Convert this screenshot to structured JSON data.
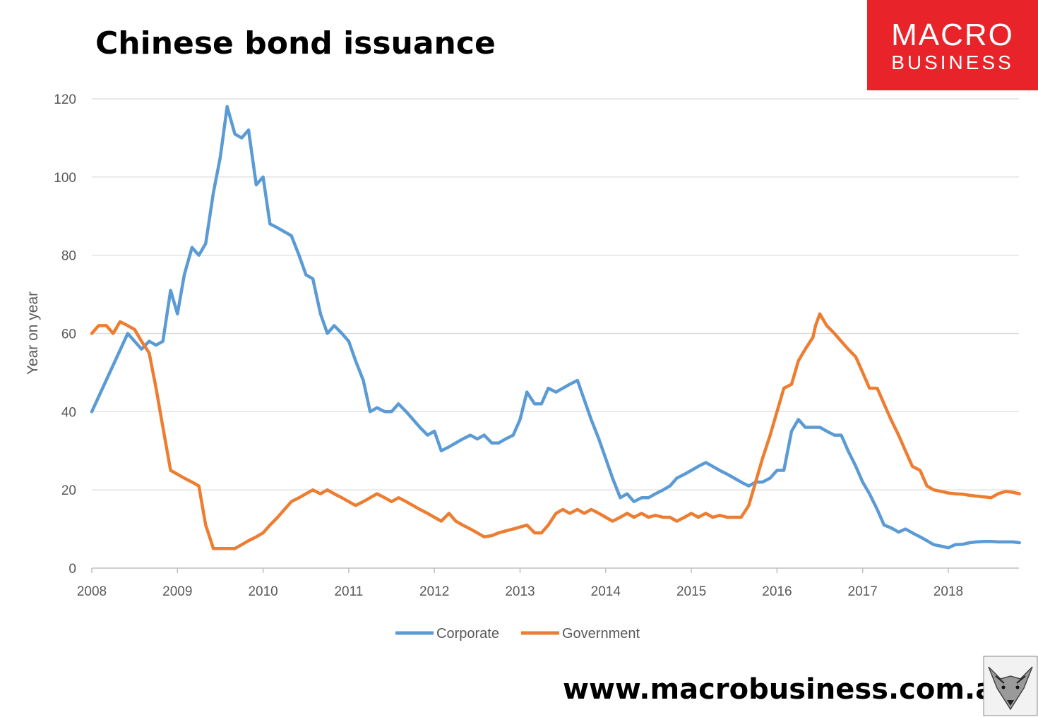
{
  "page": {
    "title": "Chinese bond issuance",
    "url_text": "www.macrobusiness.com.au",
    "logo": {
      "line1": "MACRO",
      "line2": "BUSINESS",
      "bg_color": "#e8242a"
    }
  },
  "chart_data": {
    "type": "line",
    "title": "Chinese bond issuance",
    "ylabel": "Year on year",
    "xlabel": "",
    "ylim": [
      0,
      120
    ],
    "yticks": [
      0,
      20,
      40,
      60,
      80,
      100,
      120
    ],
    "xlim": [
      2008,
      2018.85
    ],
    "xticks": [
      2008,
      2009,
      2010,
      2011,
      2012,
      2013,
      2014,
      2015,
      2016,
      2017,
      2018
    ],
    "grid": true,
    "legend": "bottom-center",
    "series": [
      {
        "name": "Corporate",
        "color": "#5b9bd5",
        "points": [
          [
            2008.0,
            40
          ],
          [
            2008.42,
            60
          ],
          [
            2008.58,
            56
          ],
          [
            2008.67,
            58
          ],
          [
            2008.75,
            57
          ],
          [
            2008.83,
            58
          ],
          [
            2008.92,
            71
          ],
          [
            2009.0,
            65
          ],
          [
            2009.08,
            75
          ],
          [
            2009.17,
            82
          ],
          [
            2009.25,
            80
          ],
          [
            2009.33,
            83
          ],
          [
            2009.42,
            96
          ],
          [
            2009.5,
            105
          ],
          [
            2009.58,
            118
          ],
          [
            2009.67,
            111
          ],
          [
            2009.75,
            110
          ],
          [
            2009.83,
            112
          ],
          [
            2009.92,
            98
          ],
          [
            2010.0,
            100
          ],
          [
            2010.08,
            88
          ],
          [
            2010.17,
            87
          ],
          [
            2010.25,
            86
          ],
          [
            2010.33,
            85
          ],
          [
            2010.42,
            80
          ],
          [
            2010.5,
            75
          ],
          [
            2010.58,
            74
          ],
          [
            2010.67,
            65
          ],
          [
            2010.75,
            60
          ],
          [
            2010.83,
            62
          ],
          [
            2010.92,
            60
          ],
          [
            2011.0,
            58
          ],
          [
            2011.08,
            53
          ],
          [
            2011.17,
            48
          ],
          [
            2011.25,
            40
          ],
          [
            2011.33,
            41
          ],
          [
            2011.42,
            40
          ],
          [
            2011.5,
            40
          ],
          [
            2011.58,
            42
          ],
          [
            2011.67,
            40
          ],
          [
            2011.75,
            38
          ],
          [
            2011.83,
            36
          ],
          [
            2011.92,
            34
          ],
          [
            2012.0,
            35
          ],
          [
            2012.08,
            30
          ],
          [
            2012.17,
            31
          ],
          [
            2012.25,
            32
          ],
          [
            2012.33,
            33
          ],
          [
            2012.42,
            34
          ],
          [
            2012.5,
            33
          ],
          [
            2012.58,
            34
          ],
          [
            2012.67,
            32
          ],
          [
            2012.75,
            32
          ],
          [
            2012.83,
            33
          ],
          [
            2012.92,
            34
          ],
          [
            2013.0,
            38
          ],
          [
            2013.08,
            45
          ],
          [
            2013.17,
            42
          ],
          [
            2013.25,
            42
          ],
          [
            2013.33,
            46
          ],
          [
            2013.42,
            45
          ],
          [
            2013.5,
            46
          ],
          [
            2013.58,
            47
          ],
          [
            2013.67,
            48
          ],
          [
            2013.75,
            43
          ],
          [
            2013.83,
            38
          ],
          [
            2013.92,
            33
          ],
          [
            2014.0,
            28
          ],
          [
            2014.08,
            23
          ],
          [
            2014.17,
            18
          ],
          [
            2014.25,
            19
          ],
          [
            2014.33,
            17
          ],
          [
            2014.42,
            18
          ],
          [
            2014.5,
            18
          ],
          [
            2014.58,
            19
          ],
          [
            2014.67,
            20
          ],
          [
            2014.75,
            21
          ],
          [
            2014.83,
            23
          ],
          [
            2014.92,
            24
          ],
          [
            2015.0,
            25
          ],
          [
            2015.08,
            26
          ],
          [
            2015.17,
            27
          ],
          [
            2015.25,
            26
          ],
          [
            2015.33,
            25
          ],
          [
            2015.42,
            24
          ],
          [
            2015.5,
            23
          ],
          [
            2015.58,
            22
          ],
          [
            2015.67,
            21
          ],
          [
            2015.75,
            22
          ],
          [
            2015.83,
            22
          ],
          [
            2015.92,
            23
          ],
          [
            2016.0,
            25
          ],
          [
            2016.08,
            25
          ],
          [
            2016.17,
            35
          ],
          [
            2016.25,
            38
          ],
          [
            2016.33,
            36
          ],
          [
            2016.42,
            36
          ],
          [
            2016.5,
            36
          ],
          [
            2016.58,
            35
          ],
          [
            2016.67,
            34
          ],
          [
            2016.75,
            34
          ],
          [
            2016.83,
            30
          ],
          [
            2016.92,
            26
          ],
          [
            2017.0,
            22
          ],
          [
            2017.08,
            19
          ],
          [
            2017.17,
            15
          ],
          [
            2017.25,
            11
          ],
          [
            2017.33,
            10.3
          ],
          [
            2017.42,
            9.2
          ],
          [
            2017.5,
            10
          ],
          [
            2017.58,
            9
          ],
          [
            2017.67,
            8
          ],
          [
            2017.75,
            7
          ],
          [
            2017.83,
            6
          ],
          [
            2017.92,
            5.6
          ],
          [
            2018.0,
            5.2
          ],
          [
            2018.08,
            6
          ],
          [
            2018.17,
            6.1
          ],
          [
            2018.25,
            6.5
          ],
          [
            2018.33,
            6.7
          ],
          [
            2018.42,
            6.8
          ],
          [
            2018.5,
            6.8
          ],
          [
            2018.58,
            6.7
          ],
          [
            2018.67,
            6.7
          ],
          [
            2018.75,
            6.7
          ],
          [
            2018.83,
            6.5
          ]
        ]
      },
      {
        "name": "Government",
        "color": "#ed7d31",
        "points": [
          [
            2008.0,
            60
          ],
          [
            2008.08,
            62
          ],
          [
            2008.17,
            62
          ],
          [
            2008.25,
            60
          ],
          [
            2008.33,
            63
          ],
          [
            2008.42,
            62
          ],
          [
            2008.5,
            61
          ],
          [
            2008.58,
            58
          ],
          [
            2008.67,
            55
          ],
          [
            2008.75,
            46
          ],
          [
            2008.83,
            36
          ],
          [
            2008.92,
            25
          ],
          [
            2009.0,
            24
          ],
          [
            2009.08,
            23
          ],
          [
            2009.17,
            22
          ],
          [
            2009.25,
            21
          ],
          [
            2009.33,
            11
          ],
          [
            2009.42,
            5
          ],
          [
            2009.5,
            5
          ],
          [
            2009.58,
            5
          ],
          [
            2009.67,
            5
          ],
          [
            2009.75,
            6
          ],
          [
            2009.83,
            7
          ],
          [
            2009.92,
            8
          ],
          [
            2010.0,
            9
          ],
          [
            2010.08,
            11
          ],
          [
            2010.17,
            13
          ],
          [
            2010.25,
            15
          ],
          [
            2010.33,
            17
          ],
          [
            2010.42,
            18
          ],
          [
            2010.5,
            19
          ],
          [
            2010.58,
            20
          ],
          [
            2010.67,
            19
          ],
          [
            2010.75,
            20
          ],
          [
            2010.83,
            19
          ],
          [
            2010.92,
            18
          ],
          [
            2011.0,
            17
          ],
          [
            2011.08,
            16
          ],
          [
            2011.17,
            17
          ],
          [
            2011.25,
            18
          ],
          [
            2011.33,
            19
          ],
          [
            2011.42,
            18
          ],
          [
            2011.5,
            17
          ],
          [
            2011.58,
            18
          ],
          [
            2011.67,
            17
          ],
          [
            2011.75,
            16
          ],
          [
            2011.83,
            15
          ],
          [
            2011.92,
            14
          ],
          [
            2012.0,
            13
          ],
          [
            2012.08,
            12
          ],
          [
            2012.17,
            14
          ],
          [
            2012.25,
            12
          ],
          [
            2012.33,
            11
          ],
          [
            2012.42,
            10
          ],
          [
            2012.5,
            9
          ],
          [
            2012.58,
            8
          ],
          [
            2012.67,
            8.3
          ],
          [
            2012.75,
            9
          ],
          [
            2012.83,
            9.5
          ],
          [
            2012.92,
            10
          ],
          [
            2013.0,
            10.5
          ],
          [
            2013.08,
            11
          ],
          [
            2013.17,
            9
          ],
          [
            2013.25,
            9
          ],
          [
            2013.33,
            11
          ],
          [
            2013.42,
            14
          ],
          [
            2013.5,
            15
          ],
          [
            2013.58,
            14
          ],
          [
            2013.67,
            15
          ],
          [
            2013.75,
            14
          ],
          [
            2013.83,
            15
          ],
          [
            2013.92,
            14
          ],
          [
            2014.0,
            13
          ],
          [
            2014.08,
            12
          ],
          [
            2014.17,
            13
          ],
          [
            2014.25,
            14
          ],
          [
            2014.33,
            13
          ],
          [
            2014.42,
            14
          ],
          [
            2014.5,
            13
          ],
          [
            2014.58,
            13.5
          ],
          [
            2014.67,
            13
          ],
          [
            2014.75,
            13
          ],
          [
            2014.83,
            12
          ],
          [
            2014.92,
            13
          ],
          [
            2015.0,
            14
          ],
          [
            2015.08,
            13
          ],
          [
            2015.17,
            14
          ],
          [
            2015.25,
            13
          ],
          [
            2015.33,
            13.5
          ],
          [
            2015.42,
            13
          ],
          [
            2015.5,
            13
          ],
          [
            2015.58,
            13
          ],
          [
            2015.67,
            16
          ],
          [
            2015.75,
            22
          ],
          [
            2015.83,
            28
          ],
          [
            2015.92,
            34
          ],
          [
            2016.0,
            40
          ],
          [
            2016.08,
            46
          ],
          [
            2016.17,
            47
          ],
          [
            2016.25,
            53
          ],
          [
            2016.33,
            56
          ],
          [
            2016.42,
            59
          ],
          [
            2016.45,
            62
          ],
          [
            2016.5,
            65
          ],
          [
            2016.58,
            62
          ],
          [
            2016.67,
            60
          ],
          [
            2016.75,
            58
          ],
          [
            2016.83,
            56
          ],
          [
            2016.92,
            54
          ],
          [
            2017.0,
            50
          ],
          [
            2017.08,
            46
          ],
          [
            2017.17,
            46
          ],
          [
            2017.25,
            42
          ],
          [
            2017.33,
            38
          ],
          [
            2017.42,
            34
          ],
          [
            2017.5,
            30
          ],
          [
            2017.58,
            26
          ],
          [
            2017.67,
            25
          ],
          [
            2017.75,
            21
          ],
          [
            2017.83,
            20
          ],
          [
            2017.92,
            19.6
          ],
          [
            2018.0,
            19.2
          ],
          [
            2018.08,
            19
          ],
          [
            2018.17,
            18.9
          ],
          [
            2018.25,
            18.6
          ],
          [
            2018.33,
            18.4
          ],
          [
            2018.42,
            18.2
          ],
          [
            2018.5,
            18
          ],
          [
            2018.58,
            19
          ],
          [
            2018.67,
            19.6
          ],
          [
            2018.75,
            19.4
          ],
          [
            2018.83,
            19
          ]
        ]
      }
    ]
  }
}
